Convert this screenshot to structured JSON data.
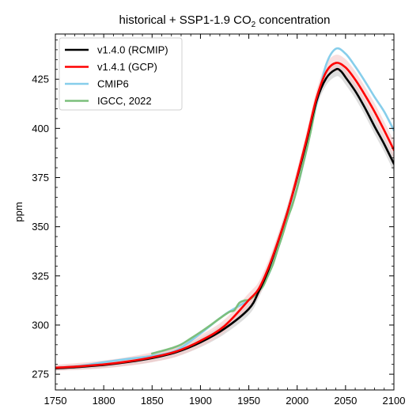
{
  "chart_data": {
    "type": "line",
    "title": {
      "prefix": "historical + SSP1-1.9 CO",
      "subscript": "2",
      "suffix": " concentration"
    },
    "xlabel": "",
    "ylabel": "ppm",
    "xlim": [
      1750,
      2100
    ],
    "ylim": [
      267,
      448
    ],
    "xticks": [
      1750,
      1800,
      1850,
      1900,
      1950,
      2000,
      2050,
      2100
    ],
    "yticks": [
      275,
      300,
      325,
      350,
      375,
      400,
      425
    ],
    "x_minor_step": 10,
    "y_minor_step": 5,
    "grid": false,
    "legend_position": "top-left",
    "series": [
      {
        "name": "v1.4.0 (RCMIP)",
        "color": "#000000",
        "band_color": "#c8c8c8",
        "band_halfwidth": [
          [
            1750,
            1.2
          ],
          [
            1850,
            2.0
          ],
          [
            1950,
            3.0
          ],
          [
            2020,
            3.5
          ],
          [
            2100,
            4.0
          ]
        ],
        "x": [
          1750,
          1775,
          1800,
          1825,
          1850,
          1875,
          1900,
          1925,
          1950,
          1960,
          1970,
          1980,
          1990,
          2000,
          2010,
          2020,
          2030,
          2040,
          2045,
          2050,
          2060,
          2070,
          2080,
          2090,
          2100
        ],
        "y": [
          278,
          278.7,
          279.7,
          281.2,
          283.2,
          286.2,
          291.2,
          298.2,
          308.2,
          316.7,
          327.7,
          342,
          357.5,
          375,
          394,
          414,
          425.5,
          430,
          429.2,
          426,
          419,
          410.5,
          401,
          392,
          382
        ]
      },
      {
        "name": "v1.4.1 (GCP)",
        "color": "#ff0000",
        "band_color": "#f5c8c8",
        "band_halfwidth": [
          [
            1750,
            1.5
          ],
          [
            1850,
            2.5
          ],
          [
            1950,
            3.5
          ],
          [
            2020,
            4.0
          ],
          [
            2100,
            4.5
          ]
        ],
        "x": [
          1750,
          1775,
          1800,
          1825,
          1850,
          1875,
          1900,
          1925,
          1950,
          1960,
          1970,
          1980,
          1990,
          2000,
          2010,
          2020,
          2030,
          2040,
          2050,
          2060,
          2070,
          2080,
          2090,
          2100
        ],
        "y": [
          278.3,
          279,
          280,
          281.5,
          283.6,
          286.6,
          292,
          299.6,
          312.7,
          318.2,
          328.8,
          342.3,
          357.4,
          375.6,
          395,
          415.4,
          428.7,
          433.3,
          431,
          424.8,
          417,
          408.5,
          399,
          389
        ]
      },
      {
        "name": "CMIP6",
        "color": "#87ceeb",
        "x": [
          1750,
          1775,
          1800,
          1825,
          1850,
          1875,
          1900,
          1925,
          1950,
          1960,
          1970,
          1980,
          1990,
          2000,
          2010,
          2020,
          2030,
          2040,
          2050,
          2060,
          2070,
          2080,
          2090,
          2100
        ],
        "y": [
          278.3,
          279.2,
          281.1,
          282.8,
          284.3,
          287.1,
          295.7,
          305.3,
          312.8,
          318.2,
          325.2,
          338.7,
          354.1,
          369.7,
          389.9,
          412.5,
          432.5,
          440.5,
          438,
          431.5,
          424,
          416,
          408.5,
          399
        ]
      },
      {
        "name": "IGCC, 2022",
        "color": "#7cbf7c",
        "x": [
          1850,
          1860,
          1870,
          1880,
          1890,
          1900,
          1910,
          1920,
          1930,
          1935,
          1940,
          1945,
          1950,
          1955,
          1960,
          1965,
          1970,
          1975,
          1980,
          1985,
          1990,
          1995,
          2000,
          2005,
          2010,
          2015,
          2020,
          2022
        ],
        "y": [
          285.5,
          286.8,
          288.2,
          290.1,
          293.2,
          296.4,
          299.8,
          303.4,
          306.7,
          307.5,
          311.2,
          312.4,
          312.8,
          314.6,
          317.3,
          320,
          325.5,
          331,
          338.7,
          346,
          354.2,
          361,
          369.7,
          379.8,
          389.8,
          400.9,
          414.2,
          417.9
        ]
      }
    ]
  }
}
